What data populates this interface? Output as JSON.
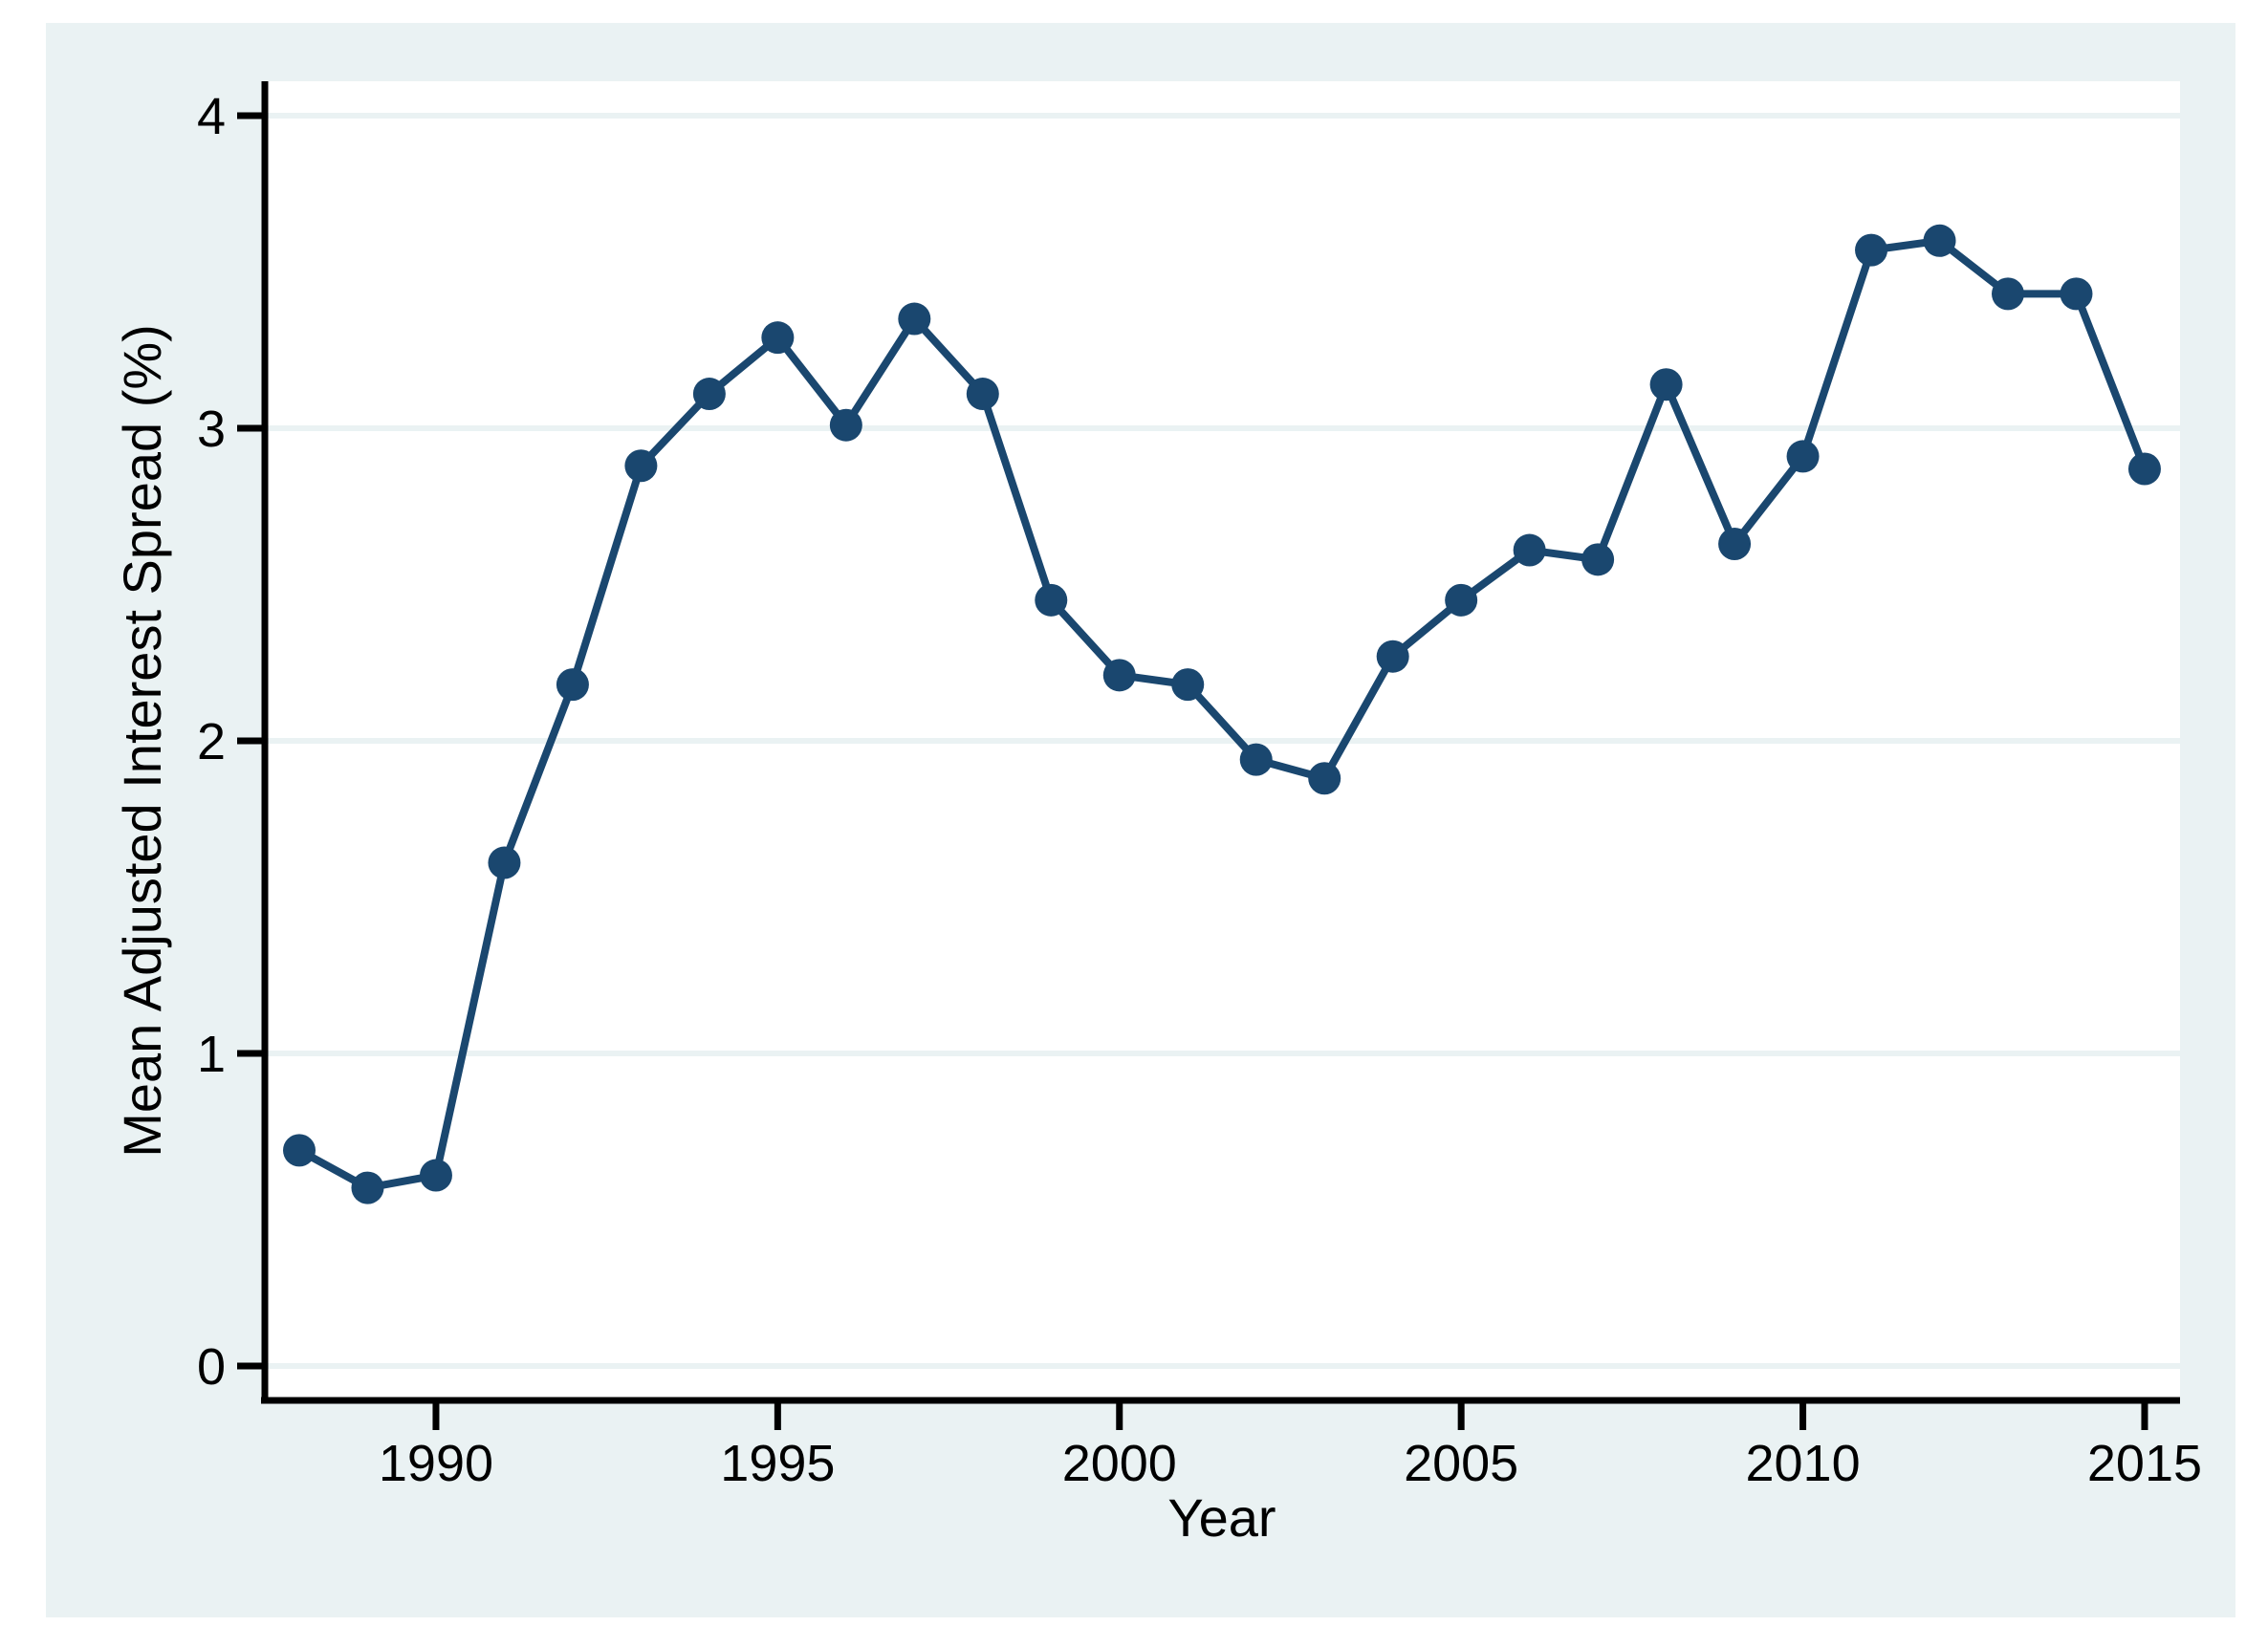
{
  "chart_data": {
    "type": "line",
    "title": "",
    "xlabel": "Year",
    "ylabel": "Mean Adjusted Interest Spread (%)",
    "x": [
      1988,
      1989,
      1990,
      1991,
      1992,
      1993,
      1994,
      1995,
      1996,
      1997,
      1998,
      1999,
      2000,
      2001,
      2002,
      2003,
      2004,
      2005,
      2006,
      2007,
      2008,
      2009,
      2010,
      2011,
      2012,
      2013,
      2014,
      2015
    ],
    "series": [
      {
        "name": "Mean Adjusted Interest Spread (%)",
        "values": [
          0.69,
          0.57,
          0.61,
          1.61,
          2.18,
          2.88,
          3.11,
          3.29,
          3.01,
          3.35,
          3.11,
          2.45,
          2.21,
          2.18,
          1.94,
          1.88,
          2.27,
          2.45,
          2.61,
          2.58,
          3.14,
          2.63,
          2.91,
          3.57,
          3.6,
          3.43,
          3.43,
          2.87
        ]
      }
    ],
    "xticks": [
      "1990",
      "1995",
      "2000",
      "2005",
      "2010",
      "2015"
    ],
    "xtick_years": [
      1990,
      1995,
      2000,
      2005,
      2010,
      2015
    ],
    "yticks": [
      "0",
      "1",
      "2",
      "3",
      "4"
    ],
    "ytick_values": [
      0,
      1,
      2,
      3,
      4
    ],
    "xlim": [
      1987.5,
      2015.5
    ],
    "ylim": [
      -0.11,
      4.11
    ],
    "grid": "horizontal-only",
    "legend": "none",
    "marker": "filled-circle",
    "colors": {
      "line": "#1a476f",
      "marker": "#1a476f",
      "plot_background": "#ffffff",
      "graph_background": "#eaf2f3",
      "gridline": "#eaf2f3",
      "axis": "#000000",
      "text": "#000000"
    }
  }
}
